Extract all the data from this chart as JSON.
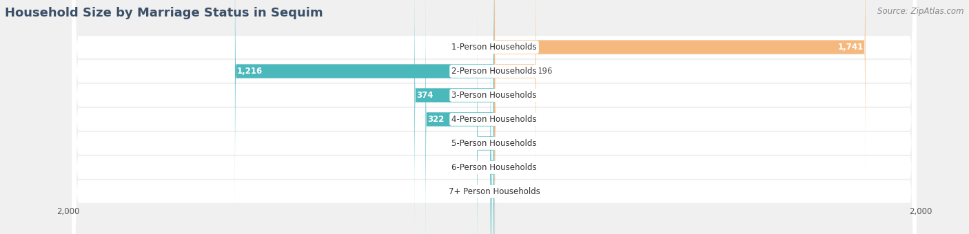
{
  "title": "Household Size by Marriage Status in Sequim",
  "source": "Source: ZipAtlas.com",
  "categories": [
    "7+ Person Households",
    "6-Person Households",
    "5-Person Households",
    "4-Person Households",
    "3-Person Households",
    "2-Person Households",
    "1-Person Households"
  ],
  "family_values": [
    14,
    19,
    80,
    322,
    374,
    1216,
    0
  ],
  "nonfamily_values": [
    0,
    0,
    0,
    7,
    0,
    196,
    1741
  ],
  "family_color": "#4bb8bc",
  "nonfamily_color": "#f5b97f",
  "max_value": 2000,
  "bar_height": 0.58,
  "bg_color": "#f0f0f0",
  "row_bg": "white",
  "axis_label": "2,000",
  "title_fontsize": 13,
  "source_fontsize": 8.5,
  "cat_fontsize": 8.5,
  "bar_label_fontsize": 8.5,
  "legend_fontsize": 9,
  "title_color": "#3a5068",
  "label_color": "#555555",
  "source_color": "#888888"
}
